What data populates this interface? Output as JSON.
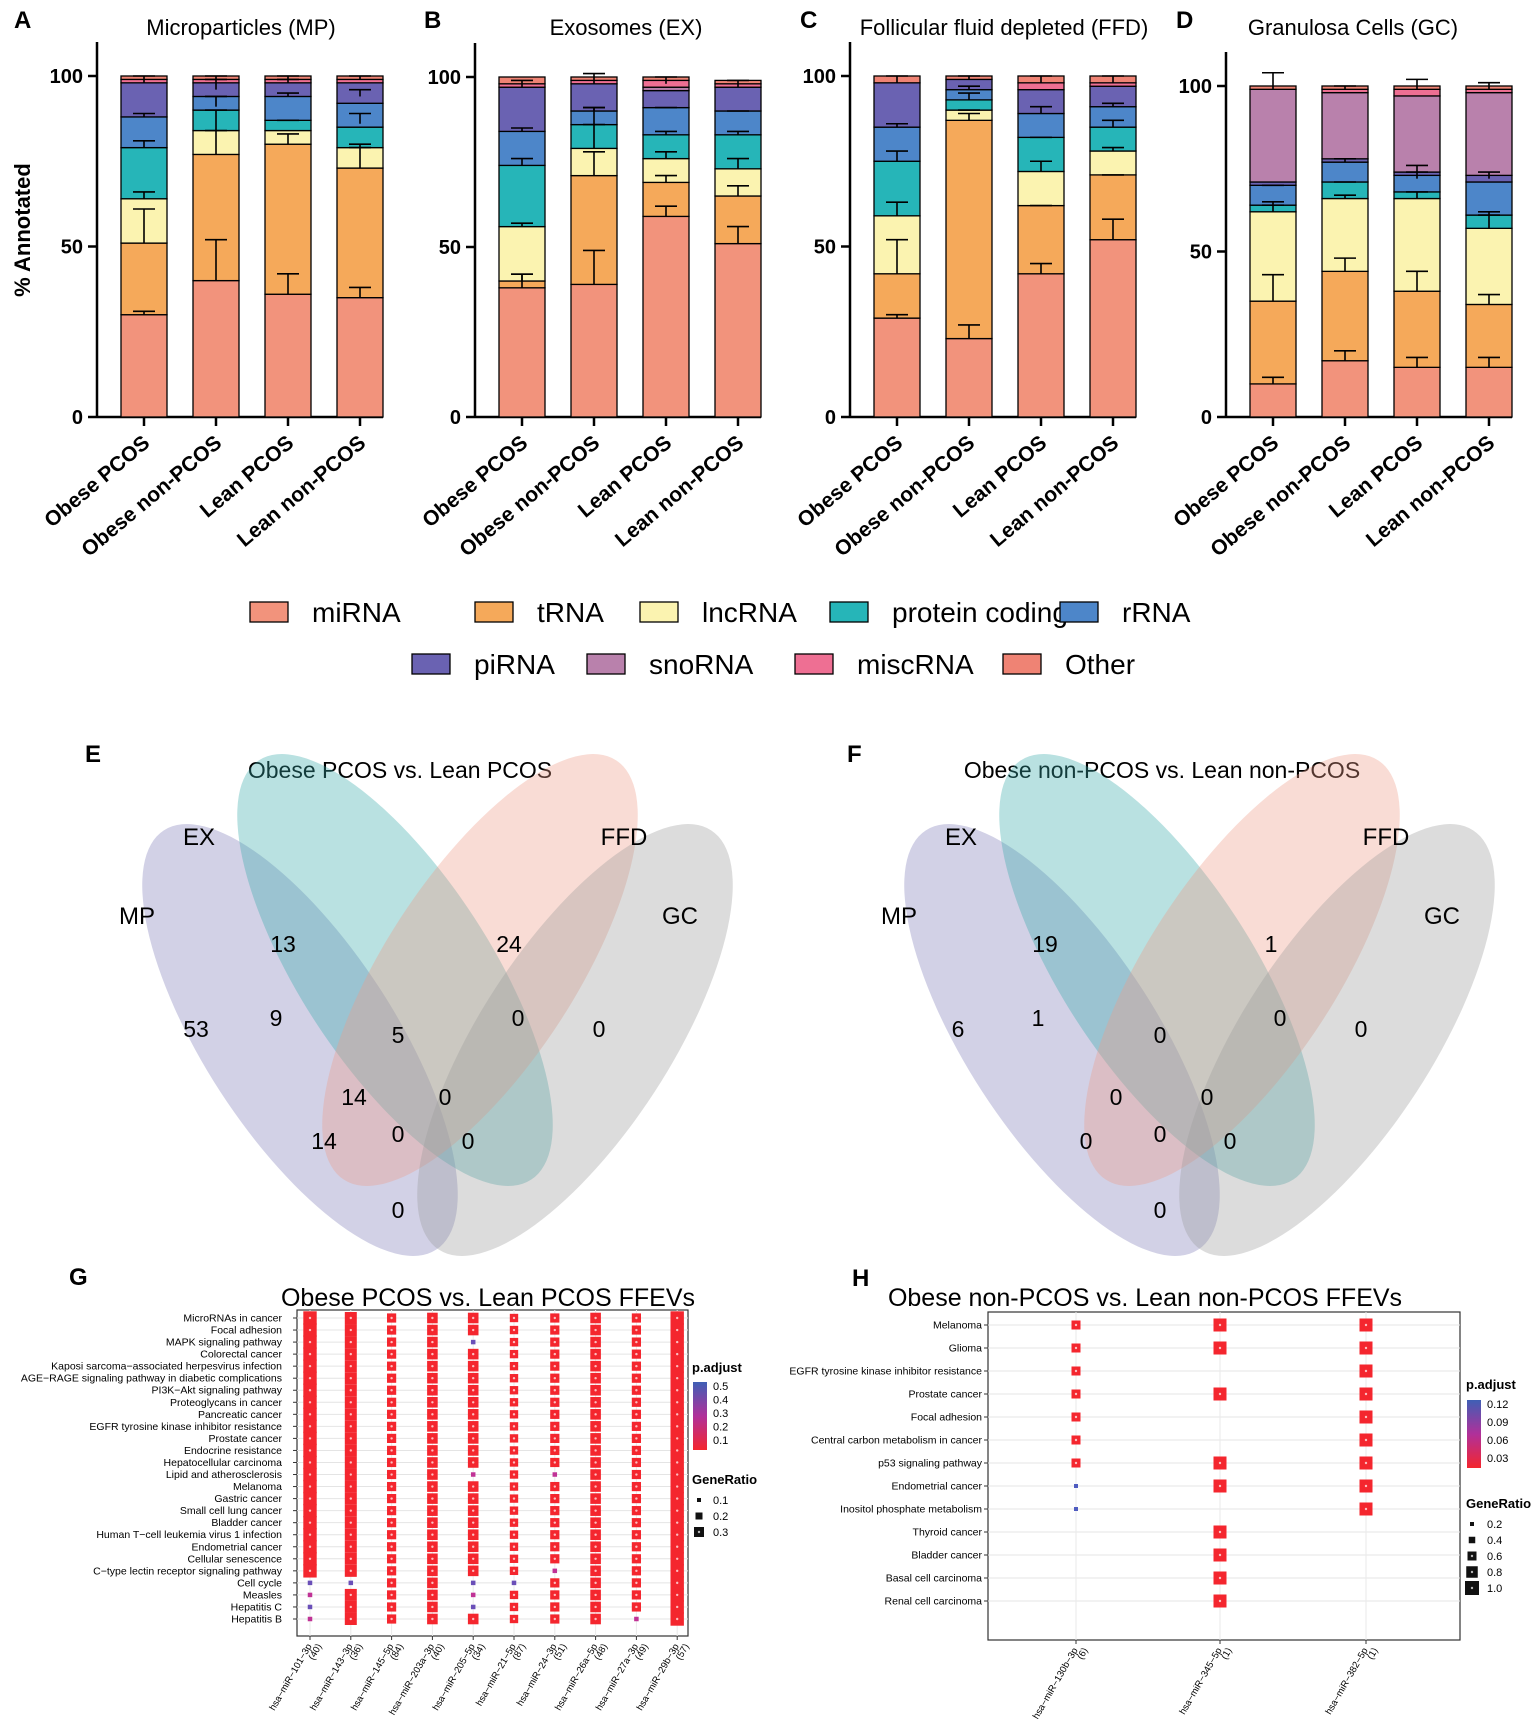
{
  "chart_data": {
    "type": "figure",
    "stacked_bars": {
      "type": "bar",
      "stacked": true,
      "ylabel": "% Annotated",
      "ylim": [
        0,
        100
      ],
      "yticks": [
        "0",
        "50",
        "100"
      ],
      "categories": [
        "Obese PCOS",
        "Obese non-PCOS",
        "Lean PCOS",
        "Lean non-PCOS"
      ],
      "legend_labels": [
        "miRNA",
        "tRNA",
        "lncRNA",
        "protein coding",
        "rRNA",
        "piRNA",
        "snoRNA",
        "miscRNA",
        "Other"
      ],
      "colors": {
        "miRNA": "#f2937c",
        "tRNA": "#f5a95a",
        "lncRNA": "#fbf3b0",
        "protein coding": "#26b5b8",
        "rRNA": "#4d86c9",
        "piRNA": "#6a62b2",
        "snoRNA": "#b981ac",
        "miscRNA": "#ee6f93",
        "Other": "#ef8374"
      },
      "panels": [
        {
          "letter": "A",
          "title": "Microparticles (MP)",
          "stacks": [
            {
              "miRNA": 30,
              "tRNA": 21,
              "lncRNA": 13,
              "protein coding": 15,
              "rRNA": 9,
              "piRNA": 10,
              "snoRNA": 0,
              "miscRNA": 1,
              "Other": 1
            },
            {
              "miRNA": 40,
              "tRNA": 37,
              "lncRNA": 7,
              "protein coding": 6,
              "rRNA": 4,
              "piRNA": 4,
              "snoRNA": 0,
              "miscRNA": 1,
              "Other": 1
            },
            {
              "miRNA": 36,
              "tRNA": 44,
              "lncRNA": 4,
              "protein coding": 3,
              "rRNA": 7,
              "piRNA": 4,
              "snoRNA": 0,
              "miscRNA": 1,
              "Other": 1
            },
            {
              "miRNA": 35,
              "tRNA": 38,
              "lncRNA": 6,
              "protein coding": 6,
              "rRNA": 7,
              "piRNA": 6,
              "snoRNA": 0,
              "miscRNA": 1,
              "Other": 1
            }
          ]
        },
        {
          "letter": "B",
          "title": "Exosomes (EX)",
          "stacks": [
            {
              "miRNA": 38,
              "tRNA": 2,
              "lncRNA": 16,
              "protein coding": 18,
              "rRNA": 10,
              "piRNA": 13,
              "snoRNA": 0,
              "miscRNA": 1,
              "Other": 2
            },
            {
              "miRNA": 39,
              "tRNA": 32,
              "lncRNA": 8,
              "protein coding": 7,
              "rRNA": 4,
              "piRNA": 8,
              "snoRNA": 0,
              "miscRNA": 1,
              "Other": 1
            },
            {
              "miRNA": 59,
              "tRNA": 10,
              "lncRNA": 7,
              "protein coding": 7,
              "rRNA": 8,
              "piRNA": 5,
              "snoRNA": 1,
              "miscRNA": 2,
              "Other": 1
            },
            {
              "miRNA": 51,
              "tRNA": 14,
              "lncRNA": 8,
              "protein coding": 10,
              "rRNA": 7,
              "piRNA": 7,
              "snoRNA": 0,
              "miscRNA": 1,
              "Other": 1
            }
          ]
        },
        {
          "letter": "C",
          "title": "Follicular fluid depleted (FFD)",
          "stacks": [
            {
              "miRNA": 29,
              "tRNA": 13,
              "lncRNA": 17,
              "protein coding": 16,
              "rRNA": 10,
              "piRNA": 13,
              "snoRNA": 0,
              "miscRNA": 0,
              "Other": 2
            },
            {
              "miRNA": 23,
              "tRNA": 64,
              "lncRNA": 3,
              "protein coding": 3,
              "rRNA": 3,
              "piRNA": 3,
              "snoRNA": 0,
              "miscRNA": 0,
              "Other": 1
            },
            {
              "miRNA": 42,
              "tRNA": 20,
              "lncRNA": 10,
              "protein coding": 10,
              "rRNA": 7,
              "piRNA": 7,
              "snoRNA": 0,
              "miscRNA": 2,
              "Other": 2
            },
            {
              "miRNA": 52,
              "tRNA": 19,
              "lncRNA": 7,
              "protein coding": 7,
              "rRNA": 6,
              "piRNA": 6,
              "snoRNA": 0,
              "miscRNA": 1,
              "Other": 2
            }
          ]
        },
        {
          "letter": "D",
          "title": "Granulosa Cells (GC)",
          "stacks": [
            {
              "miRNA": 10,
              "tRNA": 25,
              "lncRNA": 27,
              "protein coding": 2,
              "rRNA": 6,
              "piRNA": 1,
              "snoRNA": 28,
              "miscRNA": 0,
              "Other": 1
            },
            {
              "miRNA": 17,
              "tRNA": 27,
              "lncRNA": 22,
              "protein coding": 5,
              "rRNA": 6,
              "piRNA": 1,
              "snoRNA": 20,
              "miscRNA": 1,
              "Other": 1
            },
            {
              "miRNA": 15,
              "tRNA": 23,
              "lncRNA": 28,
              "protein coding": 2,
              "rRNA": 5,
              "piRNA": 1,
              "snoRNA": 23,
              "miscRNA": 2,
              "Other": 1
            },
            {
              "miRNA": 15,
              "tRNA": 19,
              "lncRNA": 23,
              "protein coding": 4,
              "rRNA": 10,
              "piRNA": 2,
              "snoRNA": 25,
              "miscRNA": 1,
              "Other": 1
            }
          ]
        }
      ]
    },
    "venns": [
      {
        "letter": "E",
        "title": "Obese PCOS vs. Lean PCOS",
        "sets": [
          "MP",
          "EX",
          "FFD",
          "GC"
        ],
        "regions": {
          "EX": "13",
          "FFD": "24",
          "MP": "53",
          "GC": "0",
          "MP&EX": "9",
          "EX&FFD": "5",
          "FFD&GC": "0",
          "MP&EX&FFD": "14",
          "EX&FFD&GC": "0",
          "MP&FFD": "14",
          "all": "0",
          "MP&GC_side": "0",
          "MP&GC": "0"
        }
      },
      {
        "letter": "F",
        "title": "Obese non-PCOS vs. Lean non-PCOS",
        "sets": [
          "MP",
          "EX",
          "FFD",
          "GC"
        ],
        "regions": {
          "EX": "19",
          "FFD": "1",
          "MP": "6",
          "GC": "0",
          "MP&EX": "1",
          "EX&FFD": "0",
          "FFD&GC": "0",
          "MP&EX&FFD": "0",
          "EX&FFD&GC": "0",
          "MP&FFD": "0",
          "all": "0",
          "MP&GC_side": "0",
          "MP&GC": "0"
        }
      }
    ],
    "dotplots": [
      {
        "letter": "G",
        "type": "scatter",
        "title": "Obese PCOS vs. Lean PCOS FFEVs",
        "rows": [
          "MicroRNAs in cancer",
          "Focal adhesion",
          "MAPK signaling pathway",
          "Colorectal cancer",
          "Kaposi sarcoma−associated herpesvirus infection",
          "AGE−RAGE signaling pathway in diabetic complications",
          "PI3K−Akt signaling pathway",
          "Proteoglycans in cancer",
          "Pancreatic cancer",
          "EGFR tyrosine kinase inhibitor resistance",
          "Prostate cancer",
          "Endocrine resistance",
          "Hepatocellular carcinoma",
          "Lipid and atherosclerosis",
          "Melanoma",
          "Gastric cancer",
          "Small cell lung cancer",
          "Bladder cancer",
          "Human T−cell leukemia virus 1 infection",
          "Endometrial cancer",
          "Cellular senescence",
          "C−type lectin receptor signaling pathway",
          "Cell cycle",
          "Measles",
          "Hepatitis C",
          "Hepatitis B"
        ],
        "columns": [
          "hsa−miR−101−3p",
          "hsa−miR−143−3p",
          "hsa−miR−145−5p",
          "hsa−miR−203a−3p",
          "hsa−miR−205−5p",
          "hsa−miR−21−5p",
          "hsa−miR−24−3p",
          "hsa−miR−26a−5p",
          "hsa−miR−27a−3p",
          "hsa−miR−29b−3p"
        ],
        "column_counts": [
          "(40)",
          "(36)",
          "(84)",
          "(40)",
          "(34)",
          "(87)",
          "(51)",
          "(48)",
          "(49)",
          "(57)"
        ],
        "color_legend_title": "p.adjust",
        "color_ticks": [
          "0.5",
          "0.4",
          "0.3",
          "0.2",
          "0.1"
        ],
        "size_legend_title": "GeneRatio",
        "size_ticks": [
          "0.1",
          "0.2",
          "0.3"
        ],
        "size_by_column": [
          0.3,
          0.25,
          0.15,
          0.2,
          0.2,
          0.12,
          0.15,
          0.2,
          0.15,
          0.3
        ],
        "padj_low": {
          "0": [
            22,
            23,
            24,
            25
          ],
          "1": [
            22
          ],
          "4": [
            2,
            13,
            22,
            23,
            24
          ],
          "5": [
            22
          ],
          "6": [
            13,
            21
          ],
          "8": [
            25
          ]
        }
      },
      {
        "letter": "H",
        "type": "scatter",
        "title": "Obese non-PCOS vs. Lean non-PCOS FFEVs",
        "rows": [
          "Melanoma",
          "Glioma",
          "EGFR tyrosine kinase inhibitor resistance",
          "Prostate cancer",
          "Focal adhesion",
          "Central carbon metabolism in cancer",
          "p53 signaling pathway",
          "Endometrial cancer",
          "Inositol phosphate metabolism",
          "Thyroid cancer",
          "Bladder cancer",
          "Basal cell carcinoma",
          "Renal cell carcinoma"
        ],
        "columns": [
          "hsa−miR−130b−3p",
          "hsa−miR−345−5p",
          "hsa−miR−382−5p"
        ],
        "column_counts": [
          "(6)",
          "(1)",
          "(1)"
        ],
        "color_legend_title": "p.adjust",
        "color_ticks": [
          "0.12",
          "0.09",
          "0.06",
          "0.03"
        ],
        "size_legend_title": "GeneRatio",
        "size_ticks": [
          "0.2",
          "0.4",
          "0.6",
          "0.8",
          "1.0"
        ],
        "present": [
          [
            0,
            1,
            2
          ],
          [
            0,
            1,
            2
          ],
          [
            0,
            2
          ],
          [
            0,
            1,
            2
          ],
          [
            0,
            2
          ],
          [
            0,
            2
          ],
          [
            0,
            1,
            2
          ],
          [
            0,
            1,
            2
          ],
          [
            0,
            2
          ],
          [
            1
          ],
          [
            1
          ],
          [
            1
          ],
          [
            1
          ]
        ],
        "low_color": [
          [
            7,
            0
          ],
          [
            8,
            0
          ]
        ]
      }
    ]
  }
}
